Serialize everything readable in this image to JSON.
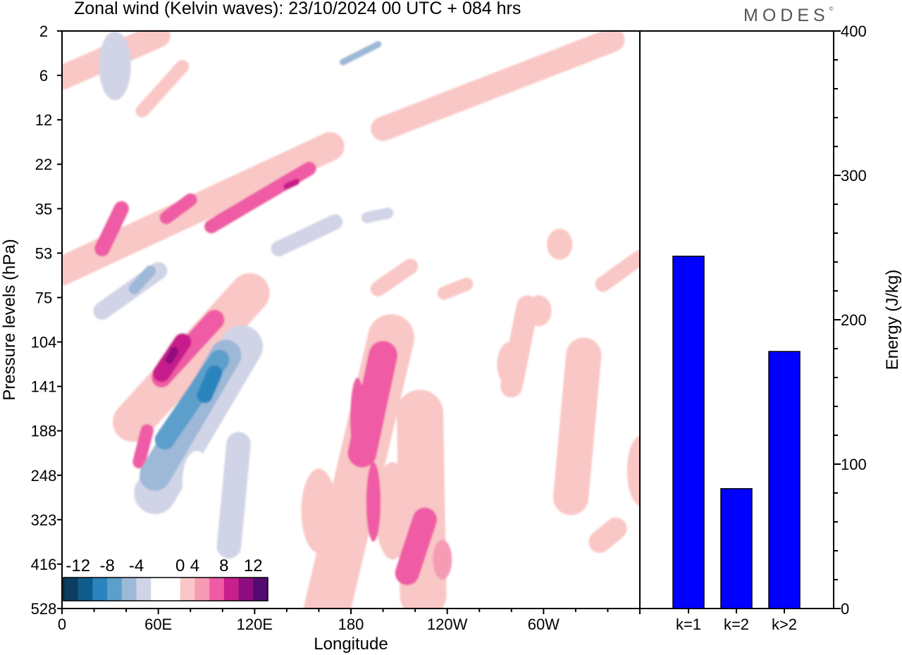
{
  "header": {
    "title": "Zonal wind (Kelvin waves):  23/10/2024  00 UTC  + 084 hrs",
    "logo": "MODES"
  },
  "chart_data": [
    {
      "type": "heatmap",
      "title": "Zonal wind (Kelvin waves):  23/10/2024  00 UTC  + 084 hrs",
      "xlabel": "Longitude",
      "ylabel": "Pressure levels (hPa)",
      "x_ticks": [
        "0",
        "60E",
        "120E",
        "180",
        "120W",
        "60W"
      ],
      "y_ticks": [
        "2",
        "6",
        "12",
        "22",
        "35",
        "53",
        "75",
        "104",
        "141",
        "188",
        "248",
        "323",
        "416",
        "528"
      ],
      "colorbar": {
        "labels": [
          "-12",
          "-8",
          "-4",
          "0",
          "4",
          "8",
          "12"
        ],
        "colors": [
          "#0d3d5e",
          "#0e5c8c",
          "#2a84bd",
          "#5c9fcb",
          "#9eb8d8",
          "#d0d4e6",
          "#ffffff",
          "#ffffff",
          "#f9c7c5",
          "#f69bb4",
          "#ef5ba5",
          "#c81f8c",
          "#8e0e7f",
          "#550a72"
        ]
      },
      "blobs": [
        {
          "x": 33,
          "y": 0.78,
          "rx": 10,
          "ry": 0.78,
          "rot": 0,
          "v": -4
        },
        {
          "x": 90,
          "y": 9.95,
          "rx": 26,
          "ry": 1.6,
          "rot": 0,
          "v": -2
        },
        {
          "x": 148,
          "y": 11.2,
          "rx": 15,
          "ry": 0.7,
          "rot": 0,
          "v": -2
        },
        {
          "x": 172,
          "y": 11.8,
          "rx": 8,
          "ry": 0.5,
          "rot": 0,
          "v": -2
        },
        {
          "x": 160,
          "y": 10.8,
          "rx": 11,
          "ry": 0.95,
          "rot": 0,
          "v": 3
        },
        {
          "x": 206,
          "y": 10.8,
          "rx": 11,
          "ry": 1.1,
          "rot": 0,
          "v": 3
        },
        {
          "x": 184,
          "y": 8.7,
          "rx": 4.5,
          "ry": 0.9,
          "rot": 0,
          "v": 6
        },
        {
          "x": 194,
          "y": 10.6,
          "rx": 4.5,
          "ry": 0.9,
          "rot": 0,
          "v": 6
        },
        {
          "x": 237,
          "y": 11.9,
          "rx": 6,
          "ry": 0.45,
          "rot": 0,
          "v": 5
        },
        {
          "x": 223,
          "y": 5.5,
          "rx": 12,
          "ry": 0.5,
          "rot": 0,
          "v": -2
        },
        {
          "x": 304,
          "y": 8.2,
          "rx": 8,
          "ry": 0.55,
          "rot": 0,
          "v": -2
        },
        {
          "x": 279,
          "y": 7.5,
          "rx": 8,
          "ry": 0.5,
          "rot": 0,
          "v": 3
        },
        {
          "x": 297,
          "y": 6.3,
          "rx": 8,
          "ry": 0.35,
          "rot": 0,
          "v": 3
        },
        {
          "x": 347,
          "y": 8.7,
          "rx": 10,
          "ry": 1.2,
          "rot": 0,
          "v": -2
        },
        {
          "x": 352,
          "y": 6.5,
          "rx": 6,
          "ry": 0.4,
          "rot": 0,
          "v": -2
        },
        {
          "x": 361,
          "y": 9.9,
          "rx": 9,
          "ry": 0.8,
          "rot": 0,
          "v": 3
        },
        {
          "x": 310,
          "y": 4.8,
          "rx": 8,
          "ry": 0.35,
          "rot": 0,
          "v": 3
        }
      ],
      "bands": [
        {
          "x0": 0,
          "y0": 1.05,
          "x1": 60,
          "y1": 0.1,
          "w": 0.55,
          "v": 3
        },
        {
          "x0": 50,
          "y0": 1.8,
          "x1": 75,
          "y1": 0.8,
          "w": 0.3,
          "v": 3
        },
        {
          "x0": 44,
          "y0": 2.9,
          "x1": 120,
          "y1": 2.0,
          "w": 0.5,
          "v": -2
        },
        {
          "x0": 0,
          "y0": 3.5,
          "x1": 12,
          "y1": 3.2,
          "w": 0.3,
          "v": -2
        },
        {
          "x0": 60,
          "y0": 1.8,
          "x1": 85,
          "y1": 1.1,
          "w": 0.25,
          "v": -2
        },
        {
          "x0": 145,
          "y0": 1.7,
          "x1": 197,
          "y1": 0.4,
          "w": 0.55,
          "v": -2
        },
        {
          "x0": 185,
          "y0": 1.2,
          "x1": 210,
          "y1": 0.6,
          "w": 0.4,
          "v": -2
        },
        {
          "x0": 180,
          "y0": 1.1,
          "x1": 240,
          "y1": 0.6,
          "w": 0.4,
          "v": -2
        },
        {
          "x0": 175,
          "y0": 0.7,
          "x1": 197,
          "y1": 0.3,
          "w": 0.15,
          "v": -6
        },
        {
          "x0": 200,
          "y0": 2.2,
          "x1": 343,
          "y1": 0.2,
          "w": 0.55,
          "v": 3
        },
        {
          "x0": 0,
          "y0": 5.4,
          "x1": 167,
          "y1": 2.6,
          "w": 0.65,
          "v": 3
        },
        {
          "x0": 25,
          "y0": 4.9,
          "x1": 37,
          "y1": 4.0,
          "w": 0.35,
          "v": 6
        },
        {
          "x0": 65,
          "y0": 4.2,
          "x1": 80,
          "y1": 3.8,
          "w": 0.3,
          "v": 6
        },
        {
          "x0": 93,
          "y0": 4.4,
          "x1": 154,
          "y1": 3.1,
          "w": 0.32,
          "v": 6
        },
        {
          "x0": 140,
          "y0": 3.5,
          "x1": 146,
          "y1": 3.4,
          "w": 0.15,
          "v": 8
        },
        {
          "x0": 8,
          "y0": 6.6,
          "x1": 205,
          "y1": 3.6,
          "w": 0.75,
          "v": -2
        },
        {
          "x0": 25,
          "y0": 6.3,
          "x1": 60,
          "y1": 5.4,
          "w": 0.4,
          "v": -4
        },
        {
          "x0": 45,
          "y0": 5.8,
          "x1": 55,
          "y1": 5.4,
          "w": 0.25,
          "v": -6
        },
        {
          "x0": 135,
          "y0": 4.9,
          "x1": 170,
          "y1": 4.3,
          "w": 0.35,
          "v": -4
        },
        {
          "x0": 190,
          "y0": 4.2,
          "x1": 203,
          "y1": 4.1,
          "w": 0.25,
          "v": -4
        },
        {
          "x0": 248,
          "y0": 4.8,
          "x1": 302,
          "y1": 3.2,
          "w": 0.6,
          "v": -2
        },
        {
          "x0": 325,
          "y0": 3.8,
          "x1": 360,
          "y1": 3.0,
          "w": 0.4,
          "v": -2
        },
        {
          "x0": 310,
          "y0": 3.4,
          "x1": 325,
          "y1": 3.4,
          "w": 0.2,
          "v": -2
        },
        {
          "x0": 197,
          "y0": 5.8,
          "x1": 217,
          "y1": 5.3,
          "w": 0.35,
          "v": 3
        },
        {
          "x0": 238,
          "y0": 5.9,
          "x1": 252,
          "y1": 5.7,
          "w": 0.3,
          "v": 3
        },
        {
          "x0": 337,
          "y0": 5.7,
          "x1": 360,
          "y1": 5.1,
          "w": 0.35,
          "v": 3
        },
        {
          "x0": 278,
          "y0": 6.4,
          "x1": 312,
          "y1": 5.6,
          "w": 0.6,
          "v": -2
        },
        {
          "x0": 255,
          "y0": 8.8,
          "x1": 263,
          "y1": 7.4,
          "w": 0.25,
          "v": -2
        },
        {
          "x0": 44,
          "y0": 8.8,
          "x1": 117,
          "y1": 5.9,
          "w": 0.9,
          "v": 3
        },
        {
          "x0": 62,
          "y0": 7.8,
          "x1": 95,
          "y1": 6.5,
          "w": 0.45,
          "v": 6
        },
        {
          "x0": 62,
          "y0": 7.7,
          "x1": 75,
          "y1": 7.0,
          "w": 0.4,
          "v": 9
        },
        {
          "x0": 67,
          "y0": 7.4,
          "x1": 70,
          "y1": 7.2,
          "w": 0.18,
          "v": 11
        },
        {
          "x0": 48,
          "y0": 9.7,
          "x1": 53,
          "y1": 9.0,
          "w": 0.3,
          "v": 6
        },
        {
          "x0": 50,
          "y0": 11.0,
          "x1": 120,
          "y1": 6.6,
          "w": 1.35,
          "v": -2
        },
        {
          "x0": 58,
          "y0": 10.4,
          "x1": 112,
          "y1": 7.1,
          "w": 0.95,
          "v": -4
        },
        {
          "x0": 130,
          "y0": 13.9,
          "x1": 90,
          "y1": 8.8,
          "w": 1.0,
          "v": -2
        },
        {
          "x0": 165,
          "y0": 13.4,
          "x1": 125,
          "y1": 10.3,
          "w": 0.5,
          "v": -2
        },
        {
          "x0": 115,
          "y0": 13.7,
          "x1": 100,
          "y1": 10.8,
          "w": 0.6,
          "v": -2
        },
        {
          "x0": 104,
          "y0": 11.6,
          "x1": 110,
          "y1": 9.3,
          "w": 0.55,
          "v": -4
        },
        {
          "x0": 58,
          "y0": 10.0,
          "x1": 102,
          "y1": 7.3,
          "w": 0.7,
          "v": -6
        },
        {
          "x0": 64,
          "y0": 9.2,
          "x1": 98,
          "y1": 7.4,
          "w": 0.45,
          "v": -8
        },
        {
          "x0": 89,
          "y0": 8.2,
          "x1": 95,
          "y1": 7.7,
          "w": 0.35,
          "v": -10
        },
        {
          "x0": 151,
          "y0": 10.5,
          "x1": 157,
          "y1": 7.1,
          "w": 0.5,
          "v": -2
        },
        {
          "x0": 162,
          "y0": 13.5,
          "x1": 205,
          "y1": 6.9,
          "w": 1.05,
          "v": 3
        },
        {
          "x0": 187,
          "y0": 9.5,
          "x1": 200,
          "y1": 7.3,
          "w": 0.65,
          "v": 6
        },
        {
          "x0": 225,
          "y0": 12.7,
          "x1": 223,
          "y1": 8.6,
          "w": 1.05,
          "v": 3
        },
        {
          "x0": 215,
          "y0": 12.2,
          "x1": 226,
          "y1": 11.0,
          "w": 0.55,
          "v": 6
        },
        {
          "x0": 235,
          "y0": 8.5,
          "x1": 250,
          "y1": 8.0,
          "w": 0.3,
          "v": -2
        },
        {
          "x0": 250,
          "y0": 7.5,
          "x1": 254,
          "y1": 10.0,
          "w": 0.4,
          "v": -2
        },
        {
          "x0": 258,
          "y0": 9.4,
          "x1": 266,
          "y1": 6.2,
          "w": 0.45,
          "v": -2
        },
        {
          "x0": 280,
          "y0": 8.0,
          "x1": 290,
          "y1": 6.2,
          "w": 0.5,
          "v": 3
        },
        {
          "x0": 317,
          "y0": 10.5,
          "x1": 325,
          "y1": 7.3,
          "w": 0.8,
          "v": 3
        },
        {
          "x0": 335,
          "y0": 11.5,
          "x1": 345,
          "y1": 11.2,
          "w": 0.5,
          "v": 3
        }
      ],
      "holes": [
        {
          "x": 84,
          "y": 10.15,
          "rx": 9,
          "ry": 0.7
        }
      ]
    },
    {
      "type": "bar",
      "ylabel": "Energy (J/kg)",
      "ylim": [
        0,
        400
      ],
      "y_ticks": [
        0,
        100,
        200,
        300,
        400
      ],
      "categories": [
        "k=1",
        "k=2",
        "k>2"
      ],
      "values": [
        244,
        83,
        178
      ],
      "bar_color": "#0000ff"
    }
  ]
}
